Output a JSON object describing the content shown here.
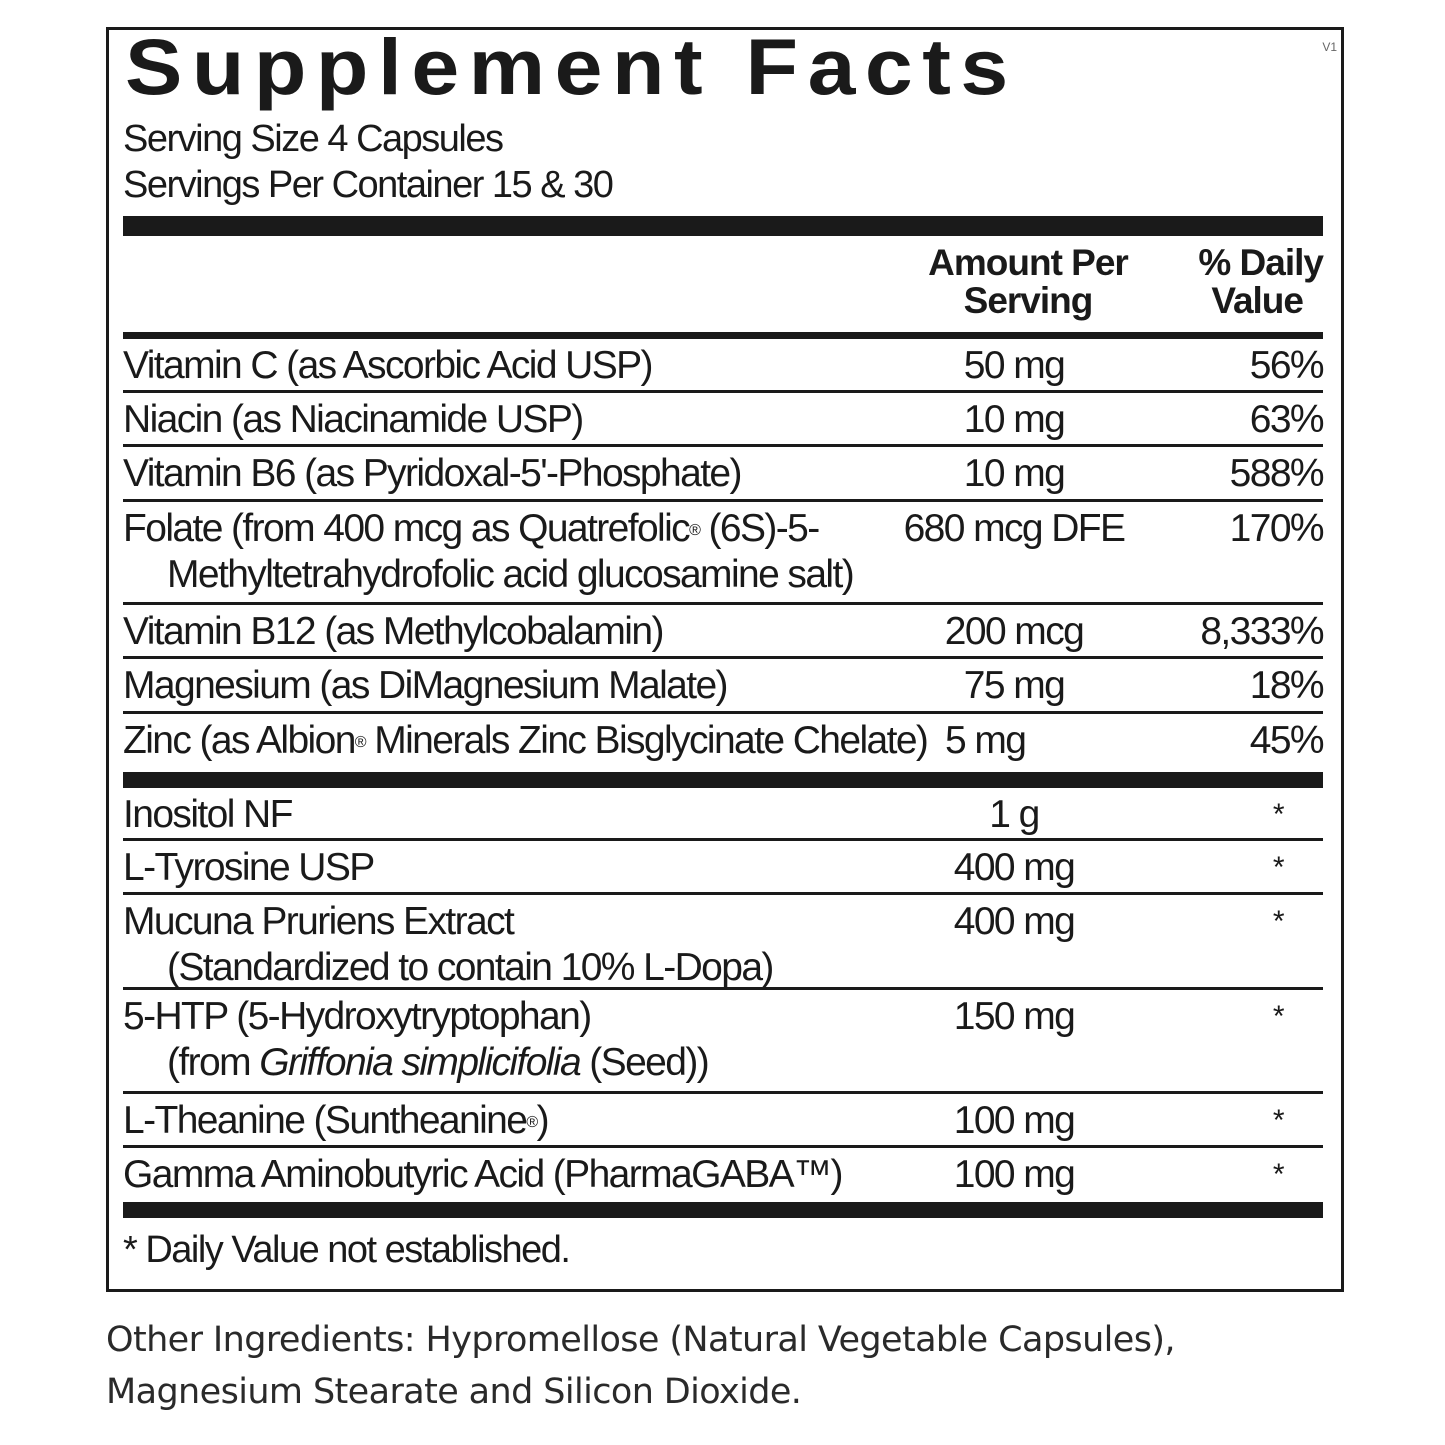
{
  "title": "Supplement Facts",
  "serving_size": "Serving Size 4 Capsules",
  "servings_per_container": "Servings Per Container 15 & 30",
  "header": {
    "amount_line1": "Amount Per",
    "amount_line2": "Serving",
    "dv_line1": "% Daily",
    "dv_line2": "Value"
  },
  "vitamins": [
    {
      "name": "Vitamin C (as Ascorbic Acid USP)",
      "amount": "50 mg",
      "dv": "56%"
    },
    {
      "name": "Niacin (as Niacinamide USP)",
      "amount": "10 mg",
      "dv": "63%"
    },
    {
      "name": "Vitamin B6 (as Pyridoxal-5'-Phosphate)",
      "amount": "10 mg",
      "dv": "588%"
    },
    {
      "name_a": "Folate (from 400 mcg as Quatrefolic",
      "name_reg": "®",
      "name_b": " (6S)-5-",
      "name_sub": "Methyltetrahydrofolic acid glucosamine salt)",
      "amount": "680 mcg DFE",
      "dv": "170%"
    },
    {
      "name": "Vitamin B12 (as Methylcobalamin)",
      "amount": "200 mcg",
      "dv": "8,333%"
    },
    {
      "name": "Magnesium (as DiMagnesium Malate)",
      "amount": "75 mg",
      "dv": "18%"
    },
    {
      "name_a": "Zinc (as Albion",
      "name_reg": "®",
      "name_b": " Minerals Zinc Bisglycinate Chelate)",
      "amount": "5 mg",
      "dv": "45%"
    }
  ],
  "others": [
    {
      "name": "Inositol NF",
      "amount": "1 g",
      "dv": "*"
    },
    {
      "name": "L-Tyrosine USP",
      "amount": "400 mg",
      "dv": "*"
    },
    {
      "name": "Mucuna Pruriens Extract",
      "name_sub": "(Standardized to contain 10% L-Dopa)",
      "amount": "400 mg",
      "dv": "*"
    },
    {
      "name": "5-HTP (5-Hydroxytryptophan)",
      "sub_a": "(from ",
      "sub_em": "Griffonia simplicifolia",
      "sub_b": " (Seed))",
      "amount": "150 mg",
      "dv": "*"
    },
    {
      "name_a": "L-Theanine (Suntheanine",
      "name_reg": "®",
      "name_b": ")",
      "amount": "100 mg",
      "dv": "*"
    },
    {
      "name": "Gamma Aminobutyric Acid (PharmaGABA™)",
      "amount": "100 mg",
      "dv": "*"
    }
  ],
  "footnote": "* Daily Value not established.",
  "other_ingredients": {
    "line1": "Other Ingredients: Hypromellose (Natural Vegetable Capsules),",
    "line2": "Magnesium Stearate and Silicon Dioxide."
  },
  "tm_mark": "V1"
}
